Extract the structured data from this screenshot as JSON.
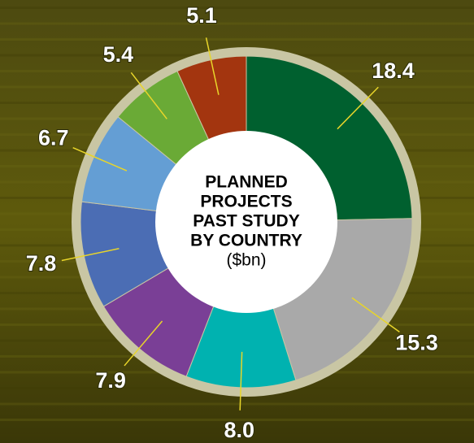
{
  "chart_data": {
    "type": "donut",
    "title": [
      "PLANNED",
      "PROJECTS",
      "PAST STUDY",
      "BY COUNTRY"
    ],
    "subtitle": "($bn)",
    "values": [
      18.4,
      15.3,
      8.0,
      7.9,
      7.8,
      6.7,
      5.4,
      5.1
    ],
    "value_labels": [
      "18.4",
      "15.3",
      "8.0",
      "7.9",
      "7.8",
      "6.7",
      "5.4",
      "5.1"
    ],
    "colors": [
      "#00602f",
      "#a9a9a9",
      "#00b2b0",
      "#7a3f96",
      "#4b6db4",
      "#649ed4",
      "#6aaa36",
      "#a3350f"
    ]
  }
}
